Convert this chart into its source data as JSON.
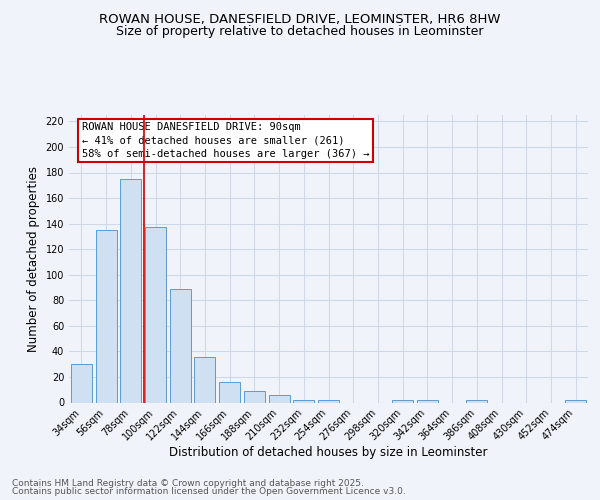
{
  "title_line1": "ROWAN HOUSE, DANESFIELD DRIVE, LEOMINSTER, HR6 8HW",
  "title_line2": "Size of property relative to detached houses in Leominster",
  "xlabel": "Distribution of detached houses by size in Leominster",
  "ylabel": "Number of detached properties",
  "categories": [
    "34sqm",
    "56sqm",
    "78sqm",
    "100sqm",
    "122sqm",
    "144sqm",
    "166sqm",
    "188sqm",
    "210sqm",
    "232sqm",
    "254sqm",
    "276sqm",
    "298sqm",
    "320sqm",
    "342sqm",
    "364sqm",
    "386sqm",
    "408sqm",
    "430sqm",
    "452sqm",
    "474sqm"
  ],
  "values": [
    30,
    135,
    175,
    137,
    89,
    36,
    16,
    9,
    6,
    2,
    2,
    0,
    0,
    2,
    2,
    0,
    2,
    0,
    0,
    0,
    2
  ],
  "bar_color": "#cfe0f3",
  "bar_edge_color": "#5b9bd5",
  "vline_color": "#cc0000",
  "vline_pos": 2.545,
  "annotation_title": "ROWAN HOUSE DANESFIELD DRIVE: 90sqm",
  "annotation_line1": "← 41% of detached houses are smaller (261)",
  "annotation_line2": "58% of semi-detached houses are larger (367) →",
  "annotation_box_color": "#cc0000",
  "ylim": [
    0,
    225
  ],
  "yticks": [
    0,
    20,
    40,
    60,
    80,
    100,
    120,
    140,
    160,
    180,
    200,
    220
  ],
  "footer_line1": "Contains HM Land Registry data © Crown copyright and database right 2025.",
  "footer_line2": "Contains public sector information licensed under the Open Government Licence v3.0.",
  "background_color": "#f0f4fa",
  "plot_bg_color": "#f0f4fa",
  "grid_color": "#d0d8e8",
  "title_fontsize": 9.5,
  "subtitle_fontsize": 9,
  "axis_label_fontsize": 8.5,
  "tick_fontsize": 7,
  "ann_fontsize": 7.5,
  "footer_fontsize": 6.5
}
